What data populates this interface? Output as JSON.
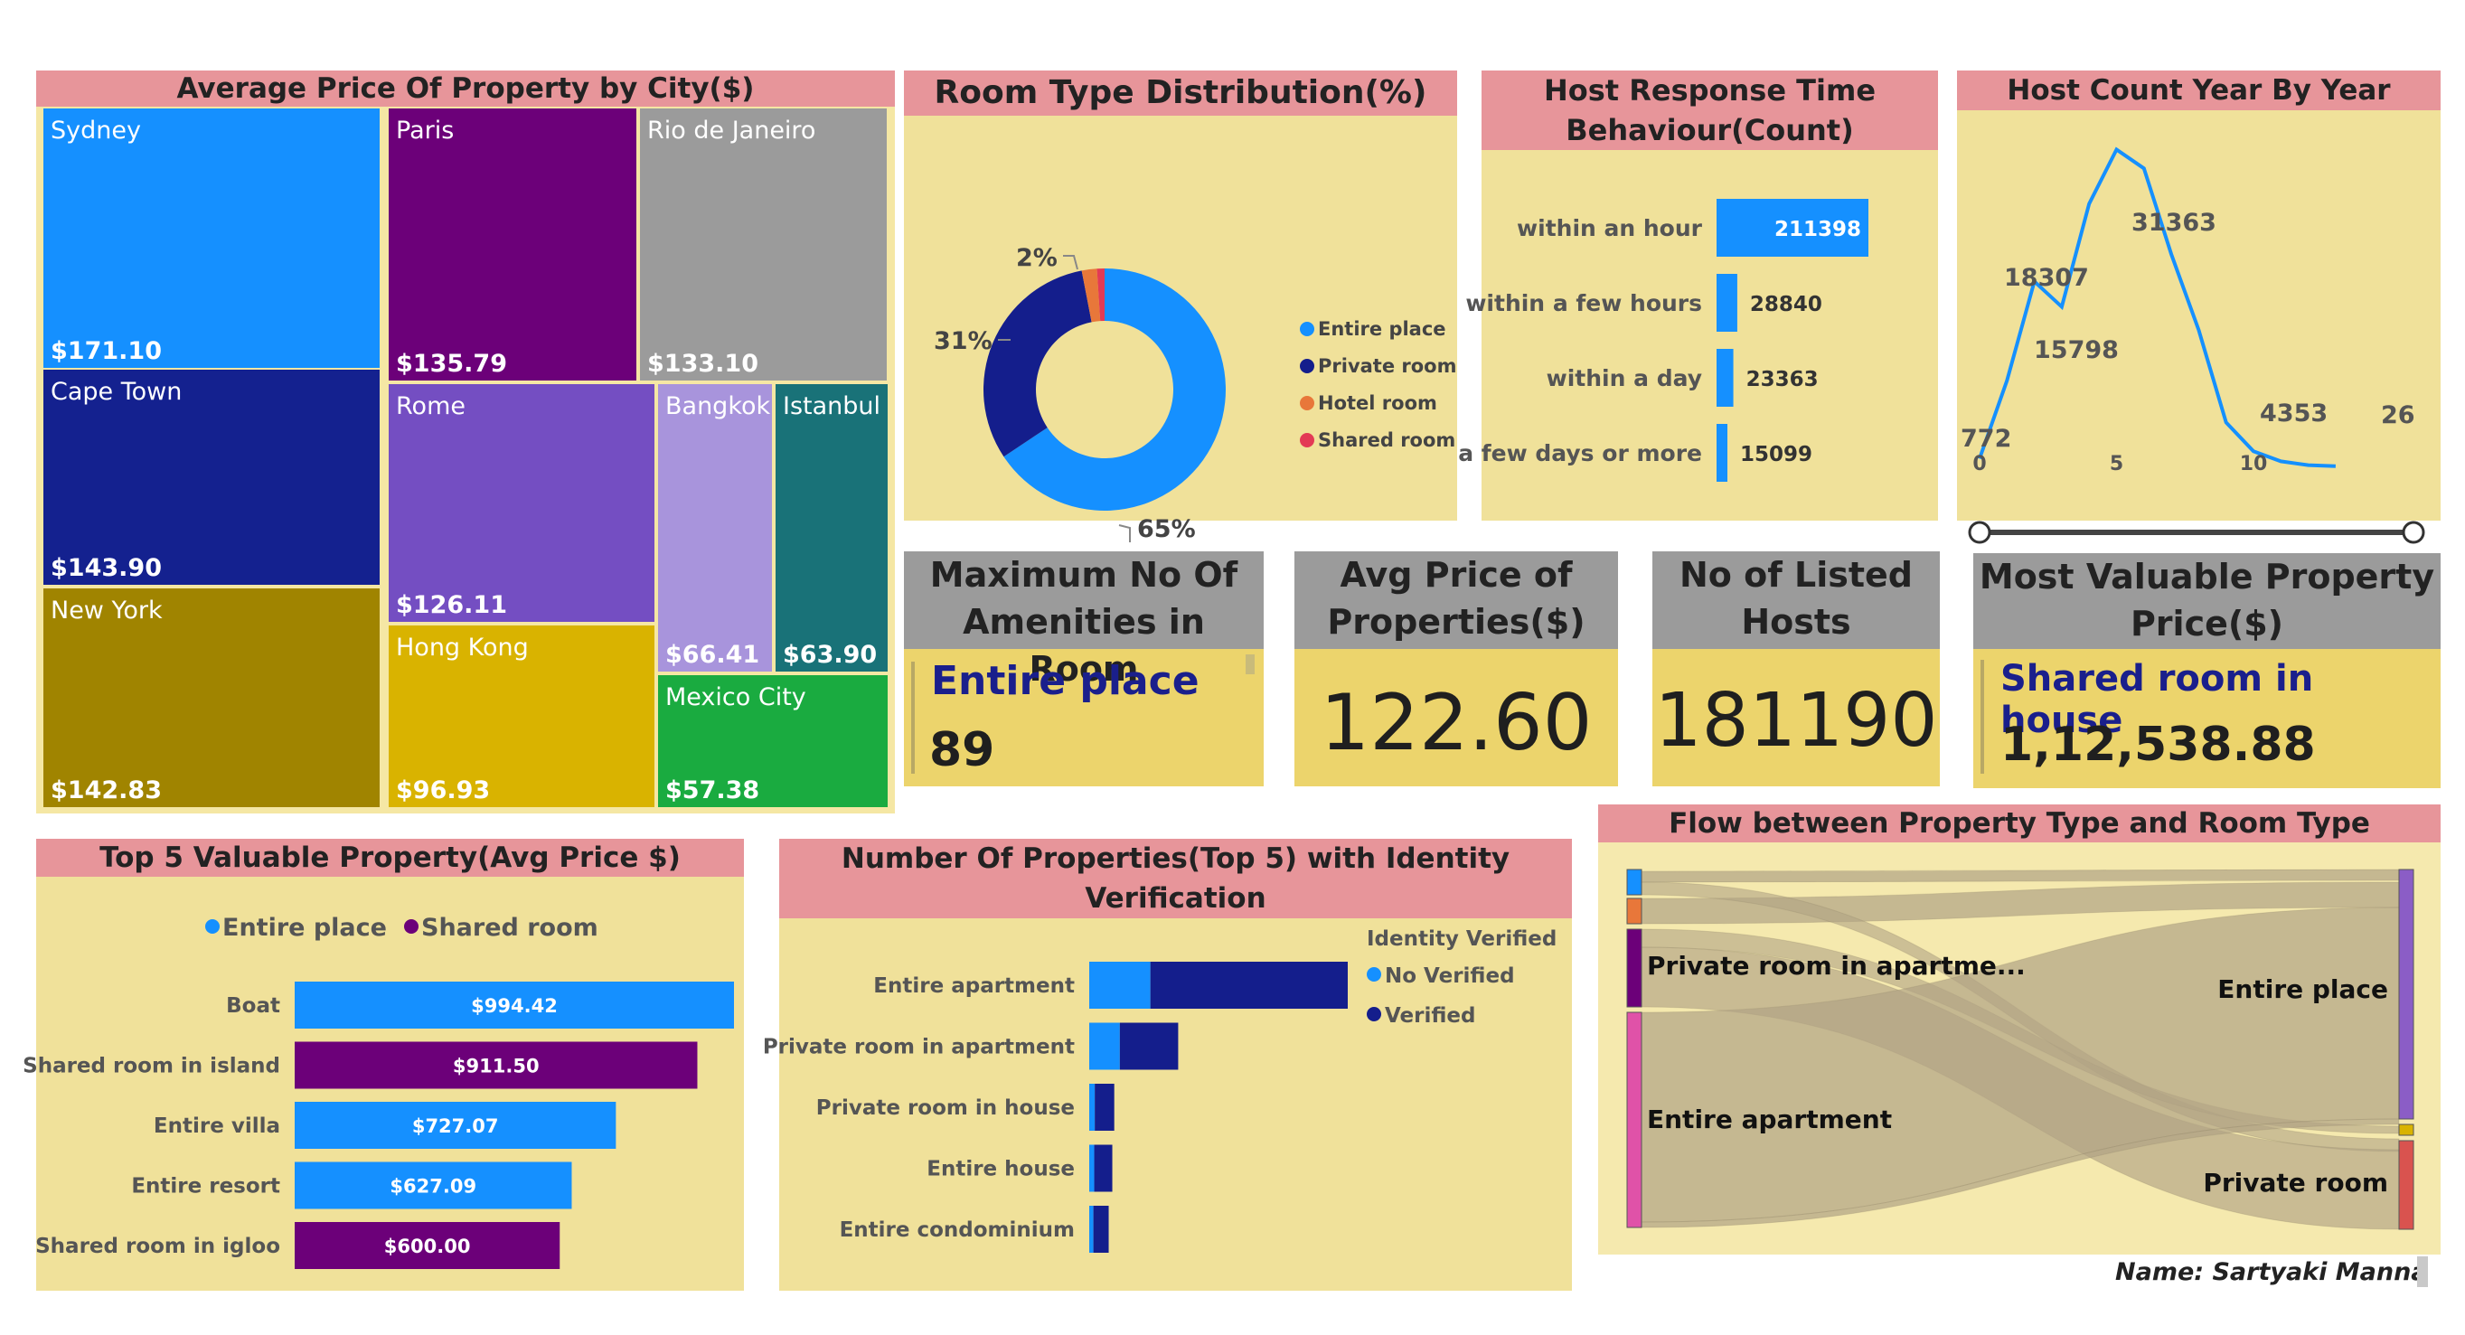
{
  "colors": {
    "panel_bg": "#f0e19a",
    "title_bg": "#e7959a",
    "entire_place": "#1590ff",
    "private_room": "#141e8c",
    "hotel_room": "#e8773a",
    "shared_room": "#e33a55",
    "shared_room_property": "#6c0079"
  },
  "treemap": {
    "title": "Average Price Of Property by City($)",
    "cells": [
      {
        "city": "Sydney",
        "value": "$171.10",
        "color": "#1590ff"
      },
      {
        "city": "Paris",
        "value": "$135.79",
        "color": "#6c0079"
      },
      {
        "city": "Rio de Janeiro",
        "value": "$133.10",
        "color": "#9b9b9b"
      },
      {
        "city": "Cape Town",
        "value": "$143.90",
        "color": "#14218f"
      },
      {
        "city": "Rome",
        "value": "$126.11",
        "color": "#744ec2"
      },
      {
        "city": "Bangkok",
        "value": "$66.41",
        "color": "#a894dc"
      },
      {
        "city": "Istanbul",
        "value": "$63.90",
        "color": "#197278"
      },
      {
        "city": "New York",
        "value": "$142.83",
        "color": "#a08400"
      },
      {
        "city": "Hong Kong",
        "value": "$96.93",
        "color": "#d9b300"
      },
      {
        "city": "Mexico City",
        "value": "$57.38",
        "color": "#1aab40"
      }
    ]
  },
  "donut": {
    "title": "Room Type Distribution(%)",
    "labels": {
      "entire": "65%",
      "private": "31%",
      "small": "2%"
    },
    "legend": [
      "Entire place",
      "Private room",
      "Hotel room",
      "Shared room"
    ]
  },
  "response": {
    "title_line1": "Host Response Time",
    "title_line2": "Behaviour(Count)"
  },
  "hostline": {
    "title": "Host Count Year By Year",
    "point_labels": [
      "772",
      "18307",
      "15798",
      "31363",
      "4353",
      "26"
    ],
    "ticks": [
      "0",
      "5",
      "10"
    ]
  },
  "cards": {
    "amenities": {
      "title_line1": "Maximum No Of",
      "title_line2": "Amenities in Room",
      "label": "Entire place",
      "value": "89"
    },
    "avg_price": {
      "title_line1": "Avg Price of",
      "title_line2": "Properties($)",
      "value": "122.60"
    },
    "hosts": {
      "title_line1": "No of Listed",
      "title_line2": "Hosts",
      "value": "181190"
    },
    "valuable": {
      "title_line1": "Most Valuable Property",
      "title_line2": "Price($)",
      "label": "Shared room in house",
      "value": "1,12,538.88"
    }
  },
  "top5": {
    "title": "Top 5 Valuable Property(Avg Price $)",
    "legend": [
      "Entire place",
      "Shared room"
    ]
  },
  "identity": {
    "title_line1": "Number Of Properties(Top 5) with Identity",
    "title_line2": "Verification",
    "legend_title": "Identity Verified",
    "legend": [
      "No Verified",
      "Verified"
    ]
  },
  "sankey": {
    "title": "Flow between Property Type and Room Type",
    "left_labels": [
      "Private room in apartme...",
      "Entire apartment"
    ],
    "right_labels": [
      "Entire place",
      "Private room"
    ]
  },
  "signature": "Name: Sartyaki Manna",
  "chart_data": [
    {
      "type": "treemap",
      "title": "Average Price Of Property by City($)",
      "categories": [
        "Sydney",
        "Paris",
        "Rio de Janeiro",
        "Cape Town",
        "Rome",
        "Bangkok",
        "Istanbul",
        "New York",
        "Hong Kong",
        "Mexico City"
      ],
      "values": [
        171.1,
        135.79,
        133.1,
        143.9,
        126.11,
        66.41,
        63.9,
        142.83,
        96.93,
        57.38
      ]
    },
    {
      "type": "pie",
      "title": "Room Type Distribution(%)",
      "categories": [
        "Entire place",
        "Private room",
        "Hotel room",
        "Shared room"
      ],
      "values": [
        65,
        31,
        2,
        1
      ],
      "colors": [
        "#1590ff",
        "#141e8c",
        "#e8773a",
        "#e33a55"
      ]
    },
    {
      "type": "bar",
      "title": "Host Response Time Behaviour(Count)",
      "categories": [
        "within an hour",
        "within a few hours",
        "within a day",
        "a few days or more"
      ],
      "values": [
        211398,
        28840,
        23363,
        15099
      ]
    },
    {
      "type": "line",
      "title": "Host Count Year By Year",
      "x": [
        0,
        1,
        2,
        3,
        4,
        5,
        6,
        7,
        8,
        9,
        10,
        11,
        12,
        13
      ],
      "y": [
        772,
        8500,
        18307,
        15798,
        26000,
        31363,
        29500,
        21000,
        13500,
        4353,
        1500,
        500,
        120,
        26
      ]
    },
    {
      "type": "bar",
      "title": "Top 5 Valuable Property(Avg Price $)",
      "categories": [
        "Boat",
        "Shared room in island",
        "Entire villa",
        "Entire resort",
        "Shared room in igloo"
      ],
      "values": [
        994.42,
        911.5,
        727.07,
        627.09,
        600.0
      ],
      "value_labels": [
        "$994.42",
        "$911.50",
        "$727.07",
        "$627.09",
        "$600.00"
      ],
      "groups": [
        "Entire place",
        "Shared room",
        "Entire place",
        "Entire place",
        "Shared room"
      ]
    },
    {
      "type": "bar",
      "title": "Number Of Properties(Top 5) with Identity Verification",
      "categories": [
        "Entire apartment",
        "Private room in apartment",
        "Private room in house",
        "Entire house",
        "Entire condominium"
      ],
      "series": [
        {
          "name": "No Verified",
          "values": [
            22000,
            11000,
            2000,
            1800,
            1500
          ]
        },
        {
          "name": "Verified",
          "values": [
            71000,
            21000,
            7000,
            6500,
            5500
          ]
        }
      ]
    }
  ]
}
